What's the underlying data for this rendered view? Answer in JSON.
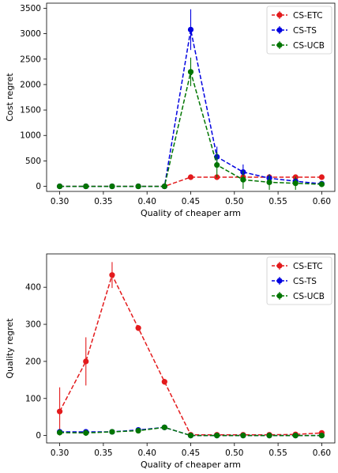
{
  "chart_data": [
    {
      "type": "line",
      "xlabel": "Quality of cheaper arm",
      "ylabel": "Cost regret",
      "xlim": [
        0.285,
        0.615
      ],
      "ylim": [
        -100,
        3600
      ],
      "xticks": [
        0.3,
        0.35,
        0.4,
        0.45,
        0.5,
        0.55,
        0.6
      ],
      "xtick_labels": [
        "0.30",
        "0.35",
        "0.40",
        "0.45",
        "0.50",
        "0.55",
        "0.60"
      ],
      "yticks": [
        0,
        500,
        1000,
        1500,
        2000,
        2500,
        3000,
        3500
      ],
      "ytick_labels": [
        "0",
        "500",
        "1000",
        "1500",
        "2000",
        "2500",
        "3000",
        "3500"
      ],
      "legend_position": "top-right",
      "x": [
        0.3,
        0.33,
        0.36,
        0.39,
        0.42,
        0.45,
        0.48,
        0.51,
        0.54,
        0.57,
        0.6
      ],
      "series": [
        {
          "name": "CS-ETC",
          "color": "#e31a1c",
          "values": [
            0,
            0,
            0,
            0,
            0,
            180,
            180,
            180,
            180,
            180,
            180
          ],
          "errors": [
            0,
            0,
            0,
            0,
            0,
            15,
            15,
            15,
            15,
            15,
            15
          ]
        },
        {
          "name": "CS-TS",
          "color": "#0000e0",
          "values": [
            0,
            0,
            0,
            0,
            0,
            3080,
            580,
            280,
            160,
            100,
            50
          ],
          "errors": [
            0,
            0,
            0,
            0,
            0,
            400,
            200,
            150,
            80,
            60,
            40
          ]
        },
        {
          "name": "CS-UCB",
          "color": "#007500",
          "values": [
            0,
            0,
            0,
            0,
            0,
            2250,
            420,
            130,
            80,
            60,
            40
          ],
          "errors": [
            0,
            0,
            0,
            0,
            0,
            280,
            250,
            180,
            150,
            130,
            40
          ]
        }
      ]
    },
    {
      "type": "line",
      "xlabel": "Quality of cheaper arm",
      "ylabel": "Quality regret",
      "xlim": [
        0.285,
        0.615
      ],
      "ylim": [
        -20,
        490
      ],
      "xticks": [
        0.3,
        0.35,
        0.4,
        0.45,
        0.5,
        0.55,
        0.6
      ],
      "xtick_labels": [
        "0.30",
        "0.35",
        "0.40",
        "0.45",
        "0.50",
        "0.55",
        "0.60"
      ],
      "yticks": [
        0,
        100,
        200,
        300,
        400
      ],
      "ytick_labels": [
        "0",
        "100",
        "200",
        "300",
        "400"
      ],
      "legend_position": "top-right",
      "x": [
        0.3,
        0.33,
        0.36,
        0.39,
        0.42,
        0.45,
        0.48,
        0.51,
        0.54,
        0.57,
        0.6
      ],
      "series": [
        {
          "name": "CS-ETC",
          "color": "#e31a1c",
          "values": [
            65,
            200,
            433,
            290,
            145,
            2,
            2,
            2,
            2,
            3,
            7
          ],
          "errors": [
            65,
            65,
            35,
            8,
            8,
            2,
            2,
            2,
            2,
            2,
            4
          ]
        },
        {
          "name": "CS-TS",
          "color": "#0000e0",
          "values": [
            10,
            10,
            10,
            15,
            22,
            0,
            0,
            0,
            0,
            0,
            0
          ],
          "errors": [
            2,
            2,
            2,
            3,
            3,
            0,
            0,
            0,
            0,
            0,
            0
          ]
        },
        {
          "name": "CS-UCB",
          "color": "#007500",
          "values": [
            8,
            7,
            10,
            13,
            22,
            0,
            0,
            0,
            0,
            0,
            0
          ],
          "errors": [
            2,
            8,
            2,
            3,
            6,
            0,
            0,
            0,
            0,
            0,
            0
          ]
        }
      ]
    }
  ]
}
